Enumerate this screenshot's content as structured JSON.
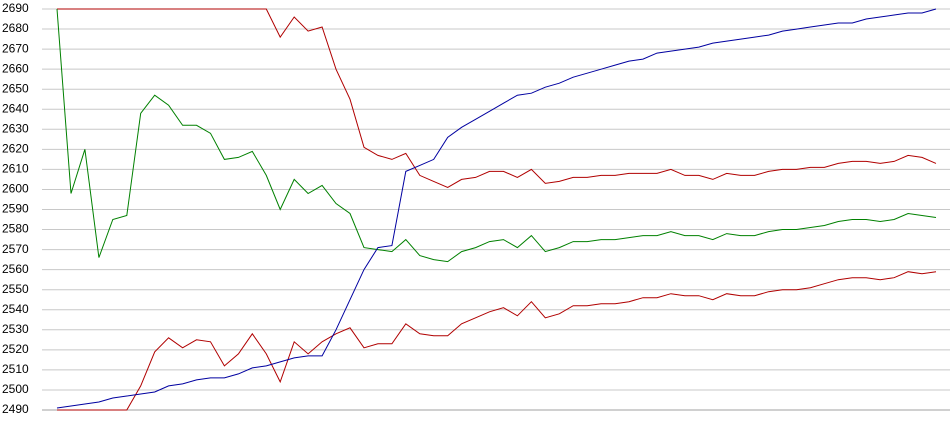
{
  "chart_data": {
    "type": "line",
    "ylim": [
      2490,
      2690
    ],
    "yticks": [
      2490,
      2500,
      2510,
      2520,
      2530,
      2540,
      2550,
      2560,
      2570,
      2580,
      2590,
      2600,
      2610,
      2620,
      2630,
      2640,
      2650,
      2660,
      2670,
      2680,
      2690
    ],
    "grid": true,
    "series": [
      {
        "color": "#b00000",
        "values": [
          2690,
          2690,
          2690,
          2690,
          2690,
          2690,
          2690,
          2690,
          2690,
          2690,
          2690,
          2690,
          2690,
          2690,
          2690,
          2690,
          2676,
          2686,
          2679,
          2681,
          2660,
          2645,
          2621,
          2617,
          2615,
          2618,
          2607,
          2604,
          2601,
          2605,
          2606,
          2609,
          2609,
          2606,
          2610,
          2603,
          2604,
          2606,
          2606,
          2607,
          2607,
          2608,
          2608,
          2608,
          2610,
          2607,
          2607,
          2605,
          2608,
          2607,
          2607,
          2609,
          2610,
          2610,
          2611,
          2611,
          2613,
          2614,
          2614,
          2613,
          2614,
          2617,
          2616,
          2613
        ]
      },
      {
        "color": "#008000",
        "values": [
          2690,
          2598,
          2620,
          2566,
          2585,
          2587,
          2638,
          2647,
          2642,
          2632,
          2632,
          2628,
          2615,
          2616,
          2619,
          2607,
          2590,
          2605,
          2598,
          2602,
          2593,
          2588,
          2571,
          2570,
          2569,
          2575,
          2567,
          2565,
          2564,
          2569,
          2571,
          2574,
          2575,
          2571,
          2577,
          2569,
          2571,
          2574,
          2574,
          2575,
          2575,
          2576,
          2577,
          2577,
          2579,
          2577,
          2577,
          2575,
          2578,
          2577,
          2577,
          2579,
          2580,
          2580,
          2581,
          2582,
          2584,
          2585,
          2585,
          2584,
          2585,
          2588,
          2587,
          2586
        ]
      },
      {
        "color": "#b00000",
        "values": [
          2490,
          2490,
          2490,
          2490,
          2490,
          2490,
          2502,
          2519,
          2526,
          2521,
          2525,
          2524,
          2512,
          2518,
          2528,
          2518,
          2504,
          2524,
          2518,
          2524,
          2528,
          2531,
          2521,
          2523,
          2523,
          2533,
          2528,
          2527,
          2527,
          2533,
          2536,
          2539,
          2541,
          2537,
          2544,
          2536,
          2538,
          2542,
          2542,
          2543,
          2543,
          2544,
          2546,
          2546,
          2548,
          2547,
          2547,
          2545,
          2548,
          2547,
          2547,
          2549,
          2550,
          2550,
          2551,
          2553,
          2555,
          2556,
          2556,
          2555,
          2556,
          2559,
          2558,
          2559
        ]
      },
      {
        "color": "#0000a0",
        "values": [
          2491,
          2492,
          2493,
          2494,
          2496,
          2497,
          2498,
          2499,
          2502,
          2503,
          2505,
          2506,
          2506,
          2508,
          2511,
          2512,
          2514,
          2516,
          2517,
          2517,
          2530,
          2545,
          2560,
          2571,
          2572,
          2609,
          2612,
          2615,
          2626,
          2631,
          2635,
          2639,
          2643,
          2647,
          2648,
          2651,
          2653,
          2656,
          2658,
          2660,
          2662,
          2664,
          2665,
          2668,
          2669,
          2670,
          2671,
          2673,
          2674,
          2675,
          2676,
          2677,
          2679,
          2680,
          2681,
          2682,
          2683,
          2683,
          2685,
          2686,
          2687,
          2688,
          2688,
          2690
        ]
      }
    ]
  }
}
